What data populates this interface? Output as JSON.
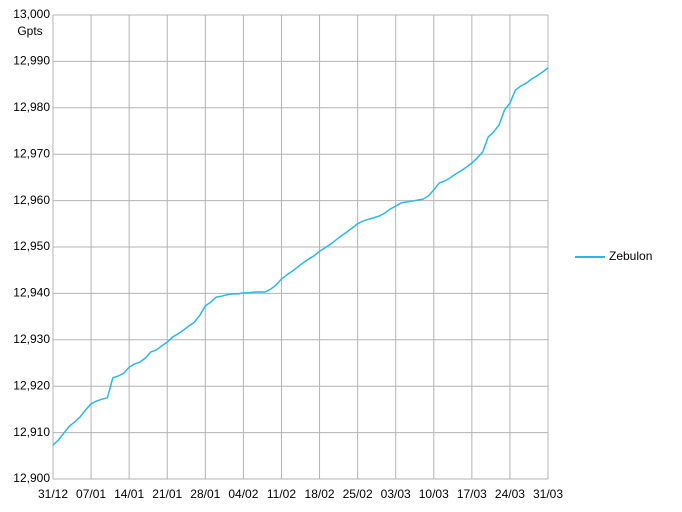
{
  "chart_data": {
    "type": "line",
    "y_label": "Gpts",
    "x": [
      0,
      1,
      2,
      3,
      4,
      5,
      6,
      7,
      8,
      9,
      10,
      11,
      12,
      13,
      14,
      15,
      16,
      17,
      18,
      19,
      20,
      21,
      22,
      23,
      24,
      25,
      26,
      27,
      28,
      29,
      30,
      31,
      32,
      33,
      34,
      35,
      36,
      37,
      38,
      39,
      40,
      41,
      42,
      43,
      44,
      45,
      46,
      47,
      48,
      49,
      50,
      51,
      52,
      53,
      54,
      55,
      56,
      57,
      58,
      59,
      60,
      61,
      62,
      63,
      64,
      65,
      66,
      67,
      68,
      69,
      70,
      71,
      72,
      73,
      74,
      75,
      76,
      77,
      78,
      79,
      80,
      81,
      82,
      83,
      84,
      85,
      86,
      87,
      88,
      89,
      90,
      91
    ],
    "series": [
      {
        "name": "Zebulon",
        "color": "#2ab7e6",
        "values": [
          12907.3,
          12908.4,
          12909.9,
          12911.4,
          12912.3,
          12913.4,
          12914.9,
          12916.2,
          12916.8,
          12917.2,
          12917.5,
          12921.8,
          12922.2,
          12922.8,
          12924.1,
          12924.8,
          12925.2,
          12926.1,
          12927.4,
          12927.8,
          12928.7,
          12929.5,
          12930.6,
          12931.3,
          12932.1,
          12933.0,
          12933.8,
          12935.3,
          12937.3,
          12938.1,
          12939.2,
          12939.4,
          12939.7,
          12939.9,
          12939.9,
          12940.1,
          12940.1,
          12940.3,
          12940.3,
          12940.3,
          12940.9,
          12941.8,
          12943.1,
          12944.0,
          12944.8,
          12945.7,
          12946.6,
          12947.4,
          12948.1,
          12949.1,
          12949.8,
          12950.6,
          12951.5,
          12952.4,
          12953.2,
          12954.1,
          12955.0,
          12955.6,
          12956.0,
          12956.3,
          12956.7,
          12957.3,
          12958.2,
          12958.8,
          12959.5,
          12959.7,
          12959.9,
          12960.1,
          12960.3,
          12961.0,
          12962.3,
          12963.8,
          12964.2,
          12964.9,
          12965.7,
          12966.4,
          12967.2,
          12968.1,
          12969.2,
          12970.5,
          12973.7,
          12974.8,
          12976.3,
          12979.5,
          12981.0,
          12983.8,
          12984.7,
          12985.3,
          12986.2,
          12986.9,
          12987.7,
          12988.6
        ]
      }
    ],
    "xlim": [
      0,
      91
    ],
    "xticks": [
      {
        "value": 0,
        "label": "31/12"
      },
      {
        "value": 7,
        "label": "07/01"
      },
      {
        "value": 14,
        "label": "14/01"
      },
      {
        "value": 21,
        "label": "21/01"
      },
      {
        "value": 28,
        "label": "28/01"
      },
      {
        "value": 35,
        "label": "04/02"
      },
      {
        "value": 42,
        "label": "11/02"
      },
      {
        "value": 49,
        "label": "18/02"
      },
      {
        "value": 56,
        "label": "25/02"
      },
      {
        "value": 63,
        "label": "03/03"
      },
      {
        "value": 70,
        "label": "10/03"
      },
      {
        "value": 77,
        "label": "17/03"
      },
      {
        "value": 84,
        "label": "24/03"
      },
      {
        "value": 91,
        "label": "31/03"
      }
    ],
    "ylim": [
      12900,
      13000
    ],
    "yticks": [
      {
        "value": 12900,
        "label": "12,900"
      },
      {
        "value": 12910,
        "label": "12,910"
      },
      {
        "value": 12920,
        "label": "12,920"
      },
      {
        "value": 12930,
        "label": "12,930"
      },
      {
        "value": 12940,
        "label": "12,940"
      },
      {
        "value": 12950,
        "label": "12,950"
      },
      {
        "value": 12960,
        "label": "12,960"
      },
      {
        "value": 12970,
        "label": "12,970"
      },
      {
        "value": 12980,
        "label": "12,980"
      },
      {
        "value": 12990,
        "label": "12,990"
      },
      {
        "value": 13000,
        "label": "13,000"
      }
    ],
    "grid": true,
    "legend": "right"
  }
}
